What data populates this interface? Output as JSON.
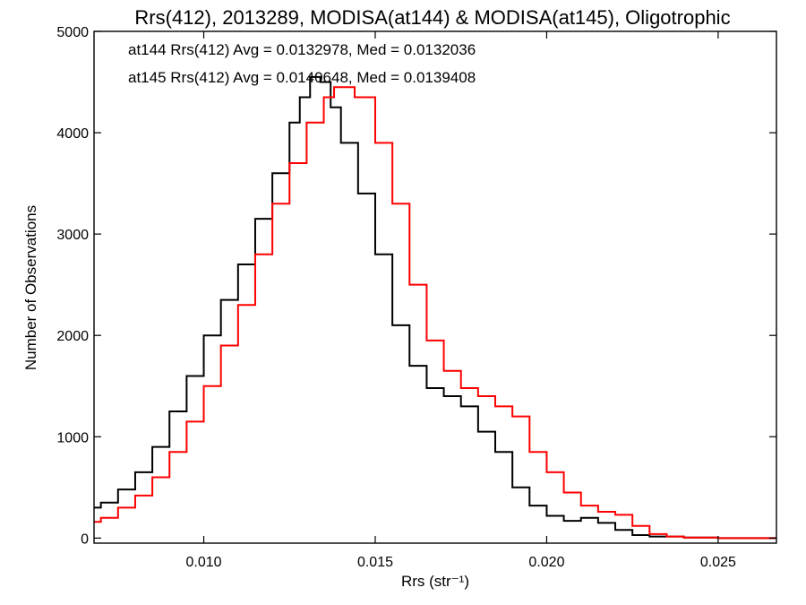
{
  "chart_data": {
    "type": "line",
    "title": "Rrs(412), 2013289, MODISA(at144) & MODISA(at145), Oligotrophic",
    "xlabel": "Rrs (str⁻¹)",
    "ylabel": "Number of Observations",
    "xlim": [
      0.0068,
      0.0267
    ],
    "ylim": [
      -50,
      5000
    ],
    "xticks": [
      0.01,
      0.015,
      0.02,
      0.025
    ],
    "xtick_labels": [
      "0.010",
      "0.015",
      "0.020",
      "0.025"
    ],
    "yticks": [
      0,
      1000,
      2000,
      3000,
      4000,
      5000
    ],
    "ytick_labels": [
      "0",
      "1000",
      "2000",
      "3000",
      "4000",
      "5000"
    ],
    "grid": false,
    "step": true,
    "annotations": [
      {
        "text": "at144 Rrs(412) Avg = 0.0132978, Med = 0.0132036",
        "color": "#000000"
      },
      {
        "text": "at145 Rrs(412) Avg = 0.0140648, Med = 0.0139408",
        "color": "#ff0000"
      }
    ],
    "series": [
      {
        "color": "#000000",
        "x": [
          0.0068,
          0.007,
          0.0075,
          0.008,
          0.0085,
          0.009,
          0.0095,
          0.01,
          0.0105,
          0.011,
          0.0115,
          0.012,
          0.0125,
          0.0128,
          0.0131,
          0.0134,
          0.0137,
          0.014,
          0.0145,
          0.015,
          0.0155,
          0.016,
          0.0165,
          0.017,
          0.0175,
          0.018,
          0.0185,
          0.019,
          0.0195,
          0.02,
          0.0205,
          0.021,
          0.0215,
          0.022,
          0.0225,
          0.023,
          0.024,
          0.025,
          0.0267
        ],
        "y": [
          300,
          350,
          480,
          650,
          900,
          1250,
          1600,
          2000,
          2350,
          2700,
          3150,
          3600,
          4100,
          4350,
          4550,
          4500,
          4250,
          3900,
          3400,
          2800,
          2100,
          1700,
          1480,
          1400,
          1300,
          1050,
          850,
          500,
          320,
          220,
          170,
          200,
          150,
          80,
          30,
          15,
          5,
          0,
          0
        ]
      },
      {
        "color": "#ff0000",
        "x": [
          0.0068,
          0.007,
          0.0075,
          0.008,
          0.0085,
          0.009,
          0.0095,
          0.01,
          0.0105,
          0.011,
          0.0115,
          0.012,
          0.0125,
          0.013,
          0.0135,
          0.0138,
          0.0141,
          0.0144,
          0.015,
          0.0155,
          0.016,
          0.0165,
          0.017,
          0.0175,
          0.018,
          0.0185,
          0.019,
          0.0195,
          0.02,
          0.0205,
          0.021,
          0.0215,
          0.022,
          0.0225,
          0.023,
          0.0235,
          0.024,
          0.025,
          0.0267
        ],
        "y": [
          160,
          200,
          300,
          420,
          600,
          850,
          1150,
          1500,
          1900,
          2300,
          2800,
          3300,
          3700,
          4100,
          4350,
          4450,
          4450,
          4350,
          3900,
          3300,
          2500,
          1950,
          1650,
          1480,
          1400,
          1300,
          1200,
          850,
          650,
          450,
          320,
          260,
          230,
          120,
          40,
          15,
          5,
          0,
          0
        ]
      }
    ]
  }
}
